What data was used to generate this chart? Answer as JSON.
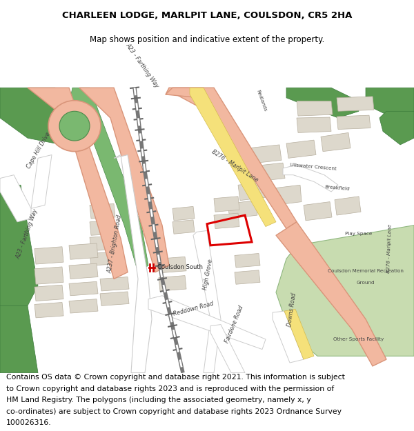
{
  "title_line1": "CHARLEEN LODGE, MARLPIT LANE, COULSDON, CR5 2HA",
  "title_line2": "Map shows position and indicative extent of the property.",
  "footer_text": "Contains OS data © Crown copyright and database right 2021. This information is subject to Crown copyright and database rights 2023 and is reproduced with the permission of HM Land Registry. The polygons (including the associated geometry, namely x, y co-ordinates) are subject to Crown copyright and database rights 2023 Ordnance Survey 100026316.",
  "title_fontsize": 9.5,
  "footer_fontsize": 7.8,
  "fig_width": 6.0,
  "fig_height": 6.25,
  "map_bg": "#f5f3ef",
  "road_pink": "#f2b8a0",
  "road_pink_border": "#d9957a",
  "road_yellow": "#f5e17a",
  "road_yellow_border": "#d4bc50",
  "road_white": "#ffffff",
  "road_white_border": "#cccccc",
  "green_light": "#c8dcb0",
  "green_medium": "#7ab870",
  "green_dark": "#5a9a50",
  "building_fill": "#ddd8cc",
  "building_border": "#b8b0a0",
  "railway_gray": "#888888",
  "plot_red": "#dd0000",
  "plot_lw": 2.2,
  "text_dark": "#222222",
  "text_road": "#444444"
}
